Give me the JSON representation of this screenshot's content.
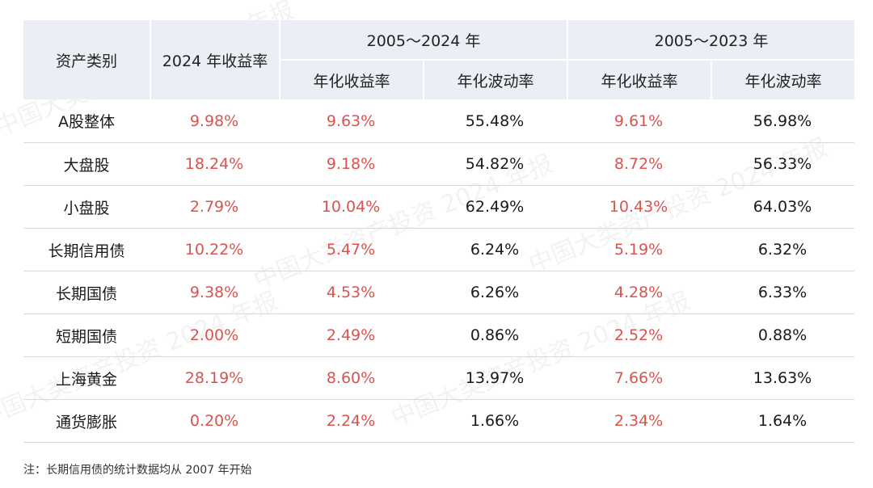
{
  "table": {
    "headers": {
      "asset_class": "资产类别",
      "return_2024": "2024 年收益率",
      "group_a": "2005～2024 年",
      "group_b": "2005～2023 年",
      "annual_return": "年化收益率",
      "annual_volatility": "年化波动率"
    },
    "rows": [
      {
        "name": "A股整体",
        "r2024": "9.98%",
        "a_ret": "9.63%",
        "a_vol": "55.48%",
        "b_ret": "9.61%",
        "b_vol": "56.98%"
      },
      {
        "name": "大盘股",
        "r2024": "18.24%",
        "a_ret": "9.18%",
        "a_vol": "54.82%",
        "b_ret": "8.72%",
        "b_vol": "56.33%"
      },
      {
        "name": "小盘股",
        "r2024": "2.79%",
        "a_ret": "10.04%",
        "a_vol": "62.49%",
        "b_ret": "10.43%",
        "b_vol": "64.03%"
      },
      {
        "name": "长期信用债",
        "r2024": "10.22%",
        "a_ret": "5.47%",
        "a_vol": "6.24%",
        "b_ret": "5.19%",
        "b_vol": "6.32%"
      },
      {
        "name": "长期国债",
        "r2024": "9.38%",
        "a_ret": "4.53%",
        "a_vol": "6.26%",
        "b_ret": "4.28%",
        "b_vol": "6.33%"
      },
      {
        "name": "短期国债",
        "r2024": "2.00%",
        "a_ret": "2.49%",
        "a_vol": "0.86%",
        "b_ret": "2.52%",
        "b_vol": "0.88%"
      },
      {
        "name": "上海黄金",
        "r2024": "28.19%",
        "a_ret": "8.60%",
        "a_vol": "13.97%",
        "b_ret": "7.66%",
        "b_vol": "13.63%"
      },
      {
        "name": "通货膨胀",
        "r2024": "0.20%",
        "a_ret": "2.24%",
        "a_vol": "1.66%",
        "b_ret": "2.34%",
        "b_vol": "1.64%"
      }
    ]
  },
  "note": "注：长期信用债的统计数据均从 2007 年开始",
  "watermark": "中国大类资产投资 2024 年报",
  "colors": {
    "header_bg": "#eceef5",
    "return_red": "#d9534f",
    "text": "#1a1a1a"
  }
}
